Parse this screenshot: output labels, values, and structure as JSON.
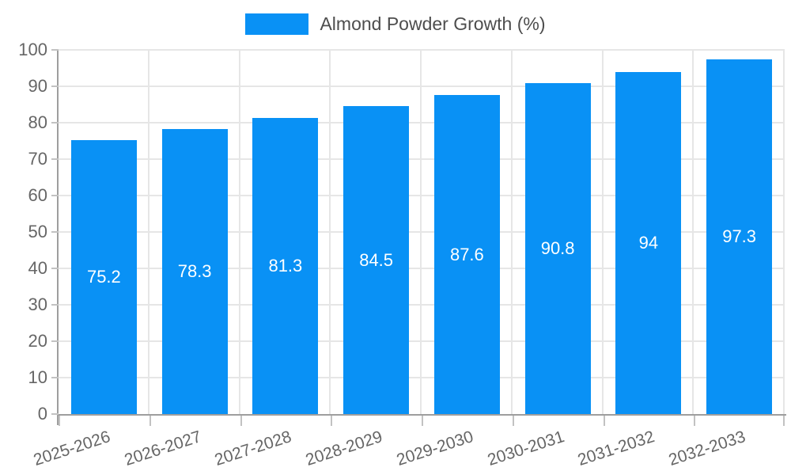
{
  "chart_data": {
    "type": "bar",
    "legend": "Almond Powder Growth (%)",
    "legend_position": "top-center",
    "categories": [
      "2025-2026",
      "2026-2027",
      "2027-2028",
      "2028-2029",
      "2029-2030",
      "2030-2031",
      "2031-2032",
      "2032-2033"
    ],
    "series": [
      {
        "name": "Almond Powder Growth (%)",
        "values": [
          75.2,
          78.3,
          81.3,
          84.5,
          87.6,
          90.8,
          94,
          97.3
        ],
        "value_labels": [
          "75.2",
          "78.3",
          "81.3",
          "84.5",
          "87.6",
          "90.8",
          "94",
          "97.3"
        ]
      }
    ],
    "xlabel": "",
    "ylabel": "",
    "title": "",
    "ylim": [
      0,
      100
    ],
    "ytick_step": 10,
    "ytick_labels": [
      "0",
      "10",
      "20",
      "30",
      "40",
      "50",
      "60",
      "70",
      "80",
      "90",
      "100"
    ],
    "grid": true,
    "colors": {
      "bar": "#0991F5",
      "grid": "#e6e6e6",
      "axis": "#9e9e9e",
      "tick": "#c2c2c2",
      "tick_label": "#666666",
      "legend_text": "#4d4d4d",
      "value_label": "#ffffff"
    }
  }
}
